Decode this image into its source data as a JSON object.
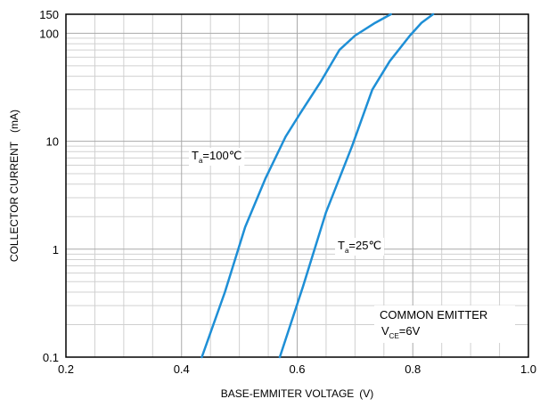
{
  "chart_data": {
    "type": "line",
    "xlabel": "BASE-EMMITER VOLTAGE",
    "xunit": "(V)",
    "ylabel": "COLLECTOR CURRENT",
    "yunit": "(mA)",
    "x_scale": "linear",
    "y_scale": "log",
    "xlim": [
      0.2,
      1.0
    ],
    "ylim": [
      0.1,
      150
    ],
    "x_ticks": [
      "0.2",
      "0.4",
      "0.6",
      "0.8",
      "1.0"
    ],
    "y_ticks": [
      "0.1",
      "1",
      "10",
      "100",
      "150"
    ],
    "grid": true,
    "line_color": "#1e8fd6",
    "series": [
      {
        "label_main": "T",
        "label_sub": "a",
        "label_rest": "=100℃",
        "x": [
          0.435,
          0.475,
          0.51,
          0.545,
          0.58,
          0.605,
          0.64,
          0.673,
          0.7,
          0.735,
          0.762
        ],
        "y": [
          0.1,
          0.4,
          1.6,
          4.5,
          11,
          18,
          35,
          70,
          95,
          125,
          150
        ]
      },
      {
        "label_main": "T",
        "label_sub": "a",
        "label_rest": "=25℃",
        "x": [
          0.57,
          0.61,
          0.65,
          0.695,
          0.73,
          0.76,
          0.795,
          0.815,
          0.835
        ],
        "y": [
          0.1,
          0.45,
          2.2,
          9,
          30,
          55,
          95,
          125,
          150
        ]
      }
    ],
    "annotation": {
      "line1": "COMMON EMITTER",
      "line2_main": "V",
      "line2_sub": "CE",
      "line2_rest": "=6V"
    }
  }
}
